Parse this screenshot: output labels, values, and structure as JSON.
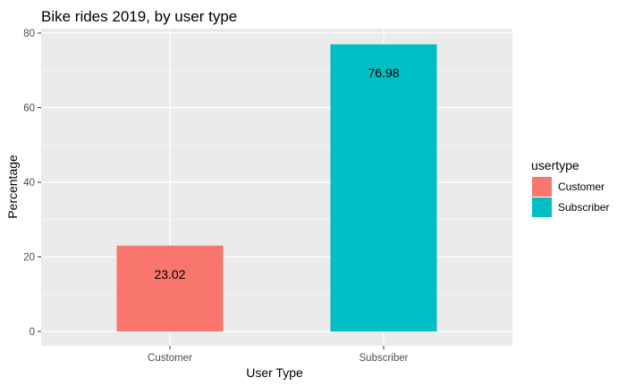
{
  "chart_data": {
    "type": "bar",
    "title": "Bike rides 2019, by user type",
    "xlabel": "User Type",
    "ylabel": "Percentage",
    "categories": [
      "Customer",
      "Subscriber"
    ],
    "values": [
      23.02,
      76.98
    ],
    "data_labels": [
      "23.02",
      "76.98"
    ],
    "colors": [
      "#f8766d",
      "#00bfc4"
    ],
    "ylim": [
      0,
      80
    ],
    "y_ticks": [
      0,
      20,
      40,
      60,
      80
    ],
    "grid": true,
    "panel_background": "#ebebeb",
    "legend": {
      "title": "usertype",
      "position": "right",
      "entries": [
        {
          "label": "Customer",
          "color": "#f8766d"
        },
        {
          "label": "Subscriber",
          "color": "#00bfc4"
        }
      ]
    }
  }
}
